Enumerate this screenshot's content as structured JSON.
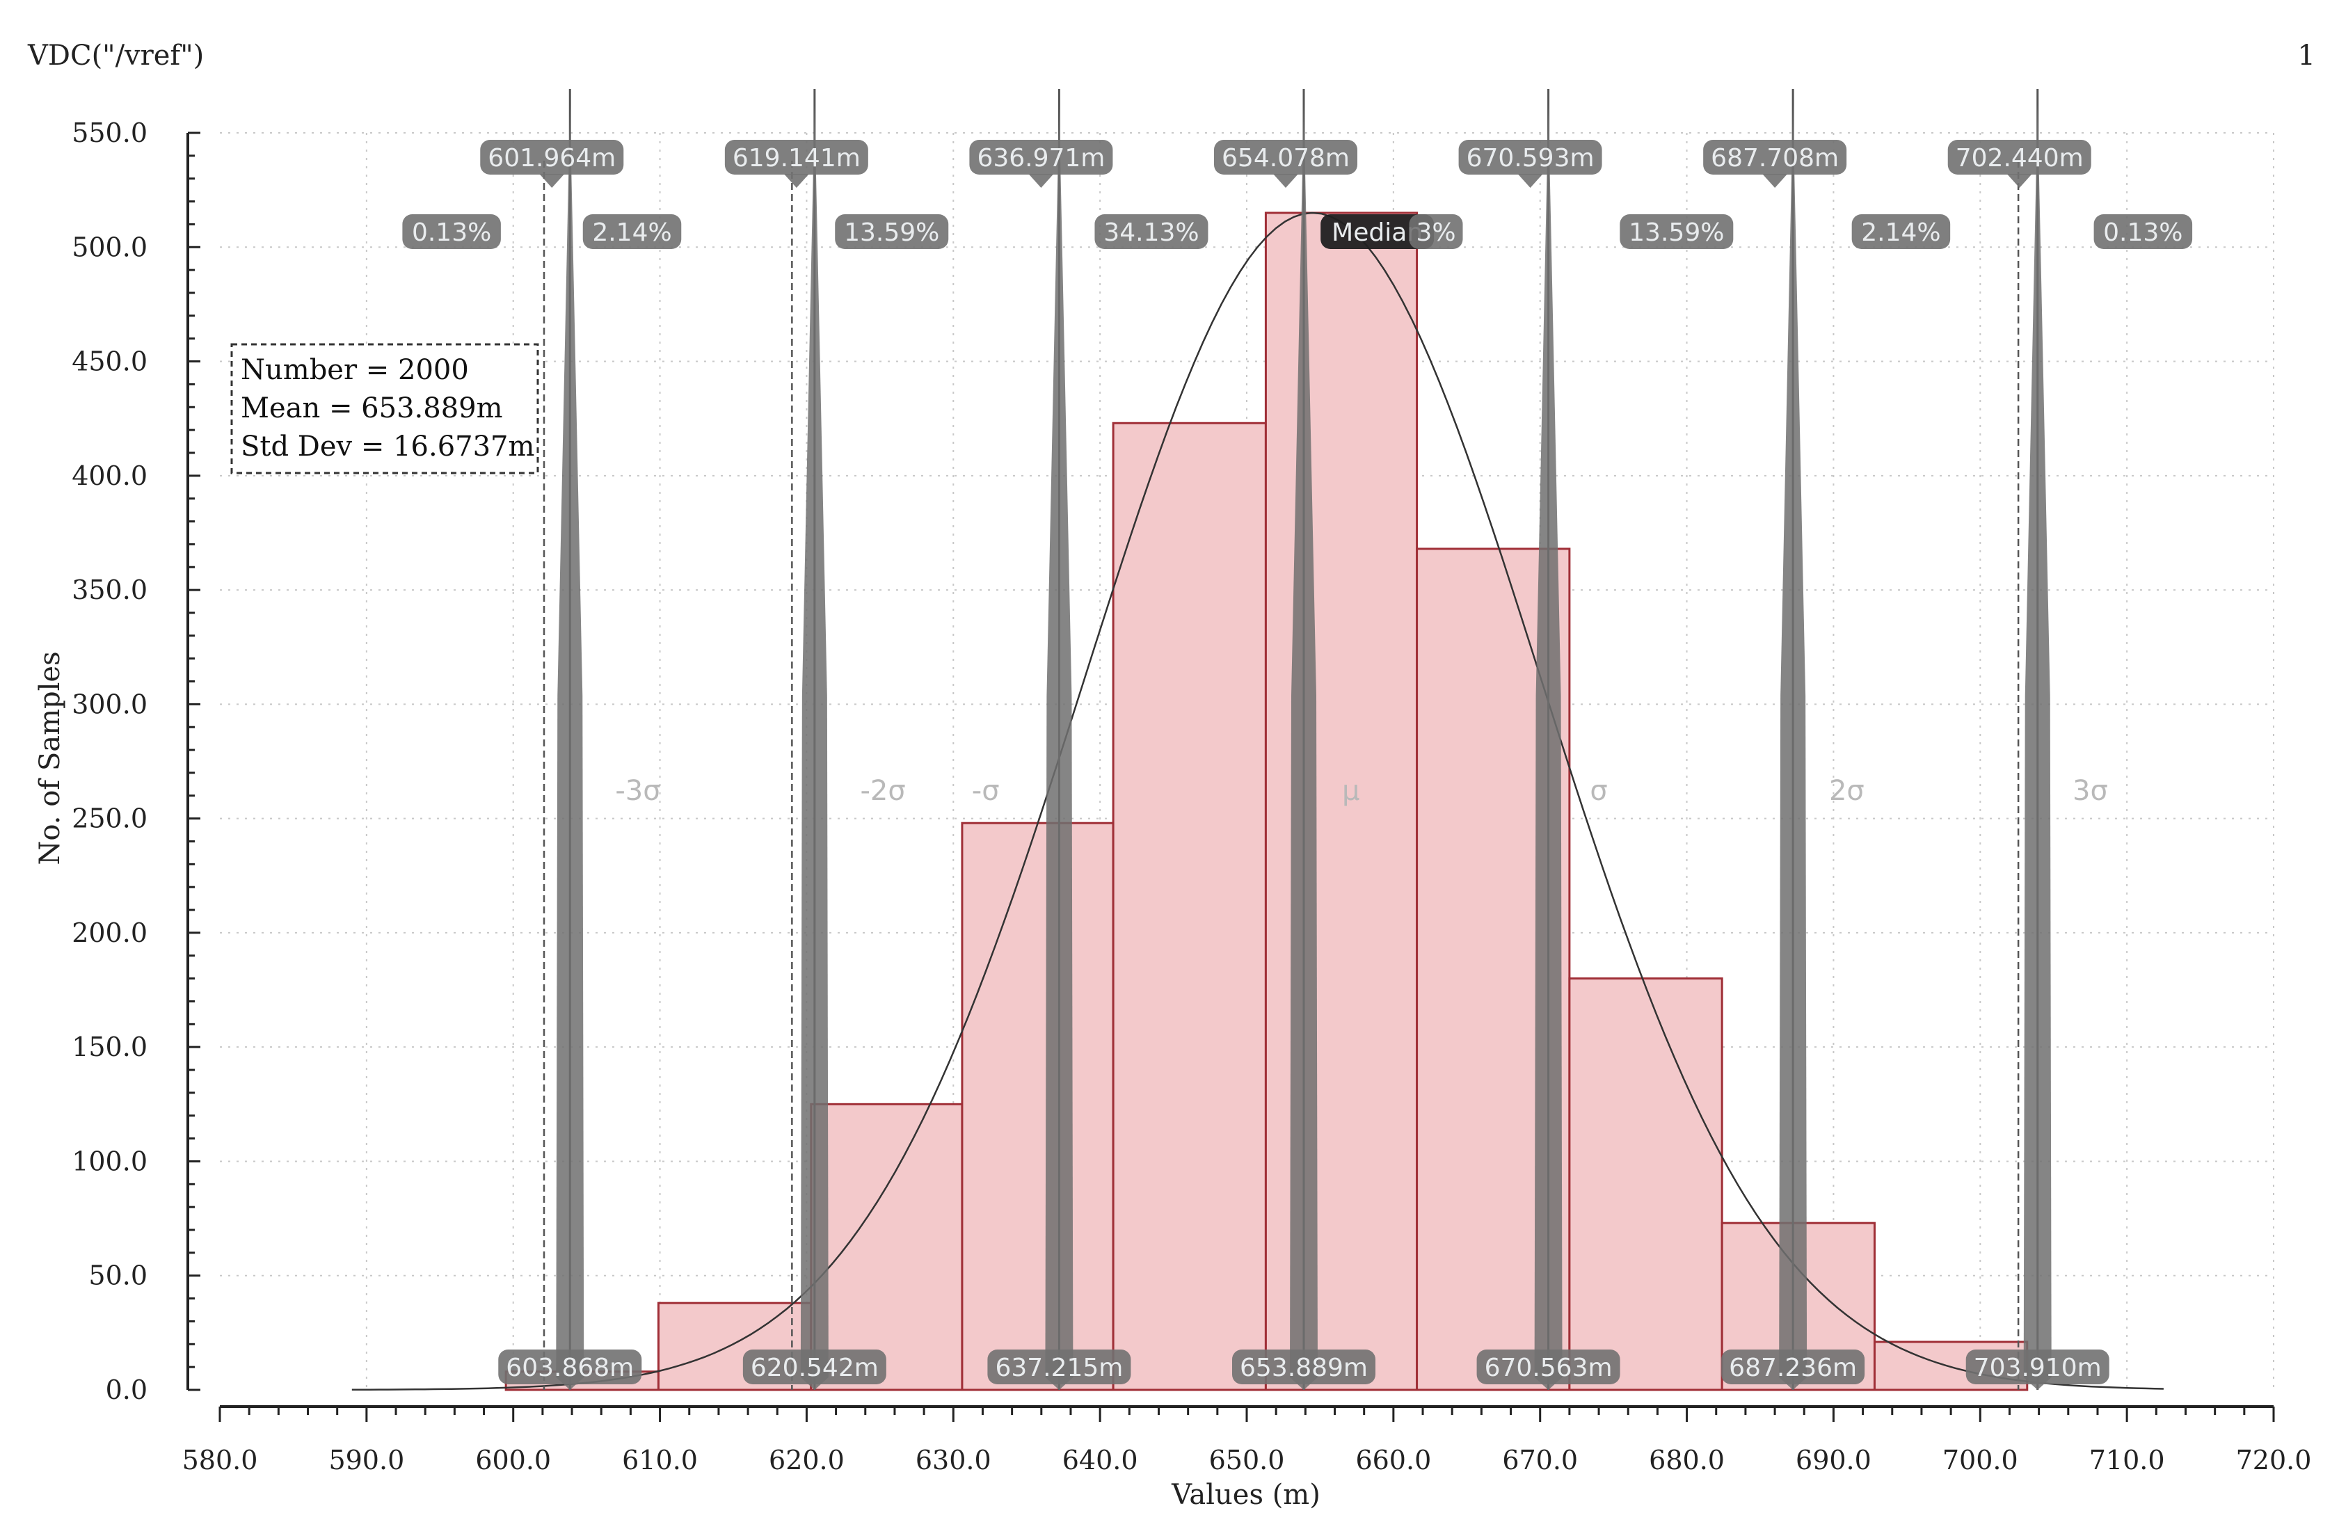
{
  "header": {
    "signal": "VDC(\"/vref\")",
    "page_number": "1"
  },
  "chart_data": {
    "type": "bar",
    "subtype": "histogram",
    "xlabel": "Values (m)",
    "ylabel": "No. of Samples",
    "xlim": [
      580,
      720
    ],
    "ylim": [
      0,
      550
    ],
    "x_ticks": [
      "580.0",
      "590.0",
      "600.0",
      "610.0",
      "620.0",
      "630.0",
      "640.0",
      "650.0",
      "660.0",
      "670.0",
      "680.0",
      "690.0",
      "700.0",
      "710.0",
      "720.0"
    ],
    "y_ticks": [
      "0.0",
      "50.0",
      "100.0",
      "150.0",
      "200.0",
      "250.0",
      "300.0",
      "350.0",
      "400.0",
      "450.0",
      "500.0",
      "550.0"
    ],
    "grid": true,
    "bins": [
      {
        "x0": 599.5,
        "x1": 609.9,
        "count": 8
      },
      {
        "x0": 609.9,
        "x1": 620.3,
        "count": 38
      },
      {
        "x0": 620.3,
        "x1": 630.6,
        "count": 125
      },
      {
        "x0": 630.6,
        "x1": 640.9,
        "count": 248
      },
      {
        "x0": 640.9,
        "x1": 651.3,
        "count": 423
      },
      {
        "x0": 651.3,
        "x1": 661.6,
        "count": 515
      },
      {
        "x0": 661.6,
        "x1": 672.0,
        "count": 368
      },
      {
        "x0": 672.0,
        "x1": 682.4,
        "count": 180
      },
      {
        "x0": 682.4,
        "x1": 692.8,
        "count": 73
      },
      {
        "x0": 692.8,
        "x1": 703.2,
        "count": 21
      }
    ],
    "curve": {
      "type": "gaussian",
      "mean": 654.5,
      "std_dev": 15.5,
      "peak": 515,
      "x_range": [
        589,
        712.5
      ]
    },
    "stats": {
      "number": "Number = 2000",
      "mean": "Mean = 653.889m",
      "std_dev": "Std Dev = 16.6737m"
    },
    "markers": [
      {
        "x": 603.868,
        "top_label": "601.964m",
        "bottom_label": "603.868m",
        "sigma_label": "-3σ"
      },
      {
        "x": 620.542,
        "top_label": "619.141m",
        "bottom_label": "620.542m",
        "sigma_label": "-2σ"
      },
      {
        "x": 637.215,
        "top_label": "636.971m",
        "bottom_label": "637.215m",
        "sigma_label": "-σ"
      },
      {
        "x": 653.889,
        "top_label": "654.078m",
        "bottom_label": "653.889m",
        "sigma_label": "μ"
      },
      {
        "x": 670.563,
        "top_label": "670.593m",
        "bottom_label": "670.563m",
        "sigma_label": "σ"
      },
      {
        "x": 687.236,
        "top_label": "687.708m",
        "bottom_label": "687.236m",
        "sigma_label": "2σ"
      },
      {
        "x": 703.91,
        "top_label": "702.440m",
        "bottom_label": "703.910m",
        "sigma_label": "3σ"
      }
    ],
    "dashed_lines": [
      602.1,
      619.0,
      702.6
    ],
    "sigma_label_positions": [
      608.5,
      625.2,
      632.2,
      657.1,
      674.0,
      690.9,
      707.5
    ],
    "percent_labels": [
      {
        "text": "0.13%",
        "x": 595.8
      },
      {
        "text": "2.14%",
        "x": 608.1
      },
      {
        "text": "13.59%",
        "x": 625.8
      },
      {
        "text": "34.13%",
        "x": 643.5
      },
      {
        "text": "Median",
        "x": 658.9
      },
      {
        "text": "3%",
        "x": 662.9
      },
      {
        "text": "13.59%",
        "x": 679.3
      },
      {
        "text": "2.14%",
        "x": 694.6
      },
      {
        "text": "0.13%",
        "x": 711.1
      }
    ],
    "colors": {
      "bar_fill": "#f3c9cb",
      "bar_stroke": "#a02f37",
      "marker": "#707070",
      "pill": "#717171",
      "curve": "#333333"
    }
  }
}
